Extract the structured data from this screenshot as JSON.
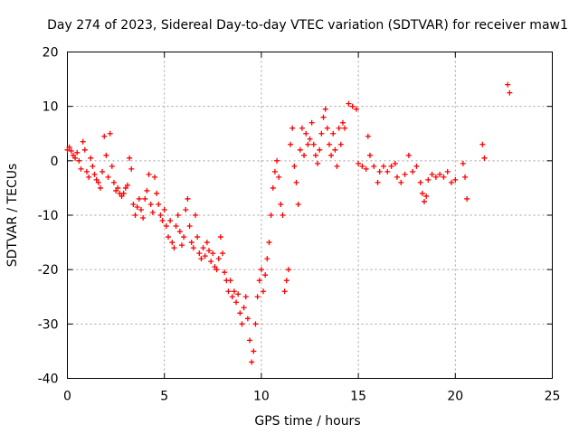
{
  "chart_data": {
    "type": "scatter",
    "title": "Day 274 of 2023, Sidereal Day-to-day VTEC variation (SDTVAR) for receiver maw1",
    "xlabel": "GPS time / hours",
    "ylabel": "SDTVAR / TECUs",
    "xlim": [
      0,
      25
    ],
    "ylim": [
      -40,
      20
    ],
    "xticks": [
      0,
      5,
      10,
      15,
      20,
      25
    ],
    "yticks": [
      -40,
      -30,
      -20,
      -10,
      0,
      10,
      20
    ],
    "xtick_labels": [
      "0",
      "5",
      "10",
      "15",
      "20",
      "25"
    ],
    "ytick_labels": [
      "-40",
      "-30",
      "-20",
      "-10",
      "0",
      "10",
      "20"
    ],
    "grid": true,
    "marker": "plus",
    "series": [
      {
        "name": "SDTVAR",
        "color": "#ff0000",
        "points": [
          [
            0.0,
            2.0
          ],
          [
            0.1,
            2.5
          ],
          [
            0.2,
            1.8
          ],
          [
            0.3,
            1.0
          ],
          [
            0.4,
            0.5
          ],
          [
            0.5,
            1.5
          ],
          [
            0.6,
            0.0
          ],
          [
            0.7,
            -1.5
          ],
          [
            0.8,
            3.5
          ],
          [
            0.9,
            2.0
          ],
          [
            1.0,
            -2.0
          ],
          [
            1.1,
            -3.0
          ],
          [
            1.2,
            0.5
          ],
          [
            1.3,
            -1.0
          ],
          [
            1.4,
            -2.5
          ],
          [
            1.5,
            -3.5
          ],
          [
            1.6,
            -4.0
          ],
          [
            1.7,
            -5.0
          ],
          [
            1.8,
            -2.0
          ],
          [
            1.9,
            4.5
          ],
          [
            2.0,
            1.0
          ],
          [
            2.1,
            -3.0
          ],
          [
            2.2,
            5.0
          ],
          [
            2.3,
            -1.0
          ],
          [
            2.4,
            -4.0
          ],
          [
            2.5,
            -5.5
          ],
          [
            2.6,
            -5.0
          ],
          [
            2.7,
            -6.0
          ],
          [
            2.8,
            -6.5
          ],
          [
            2.9,
            -6.0
          ],
          [
            3.0,
            -5.0
          ],
          [
            3.1,
            -4.5
          ],
          [
            3.2,
            0.5
          ],
          [
            3.3,
            -1.5
          ],
          [
            3.4,
            -8.0
          ],
          [
            3.5,
            -10.0
          ],
          [
            3.6,
            -8.5
          ],
          [
            3.7,
            -7.0
          ],
          [
            3.8,
            -9.0
          ],
          [
            3.9,
            -10.5
          ],
          [
            4.0,
            -7.0
          ],
          [
            4.1,
            -5.5
          ],
          [
            4.2,
            -2.5
          ],
          [
            4.3,
            -8.0
          ],
          [
            4.4,
            -9.5
          ],
          [
            4.5,
            -3.0
          ],
          [
            4.6,
            -6.0
          ],
          [
            4.7,
            -8.0
          ],
          [
            4.8,
            -10.0
          ],
          [
            4.9,
            -11.0
          ],
          [
            5.0,
            -9.0
          ],
          [
            5.1,
            -12.0
          ],
          [
            5.2,
            -14.0
          ],
          [
            5.3,
            -11.0
          ],
          [
            5.4,
            -15.0
          ],
          [
            5.5,
            -16.0
          ],
          [
            5.6,
            -12.0
          ],
          [
            5.7,
            -10.0
          ],
          [
            5.8,
            -13.0
          ],
          [
            5.9,
            -15.5
          ],
          [
            6.0,
            -14.0
          ],
          [
            6.1,
            -9.0
          ],
          [
            6.2,
            -7.0
          ],
          [
            6.3,
            -12.0
          ],
          [
            6.4,
            -15.0
          ],
          [
            6.5,
            -16.0
          ],
          [
            6.6,
            -10.0
          ],
          [
            6.7,
            -14.0
          ],
          [
            6.8,
            -17.0
          ],
          [
            6.9,
            -18.0
          ],
          [
            7.0,
            -16.0
          ],
          [
            7.1,
            -17.5
          ],
          [
            7.2,
            -15.0
          ],
          [
            7.3,
            -16.5
          ],
          [
            7.4,
            -18.5
          ],
          [
            7.5,
            -17.0
          ],
          [
            7.6,
            -19.5
          ],
          [
            7.7,
            -20.0
          ],
          [
            7.8,
            -18.0
          ],
          [
            7.9,
            -14.0
          ],
          [
            8.0,
            -17.0
          ],
          [
            8.1,
            -20.5
          ],
          [
            8.2,
            -22.0
          ],
          [
            8.3,
            -24.0
          ],
          [
            8.4,
            -22.0
          ],
          [
            8.5,
            -25.0
          ],
          [
            8.6,
            -24.0
          ],
          [
            8.7,
            -26.0
          ],
          [
            8.8,
            -24.5
          ],
          [
            8.9,
            -28.0
          ],
          [
            9.0,
            -30.0
          ],
          [
            9.1,
            -27.0
          ],
          [
            9.2,
            -25.0
          ],
          [
            9.3,
            -29.0
          ],
          [
            9.4,
            -33.0
          ],
          [
            9.5,
            -37.0
          ],
          [
            9.6,
            -35.0
          ],
          [
            9.7,
            -30.0
          ],
          [
            9.8,
            -25.0
          ],
          [
            9.9,
            -22.0
          ],
          [
            10.0,
            -20.0
          ],
          [
            10.1,
            -24.0
          ],
          [
            10.2,
            -21.0
          ],
          [
            10.3,
            -18.0
          ],
          [
            10.4,
            -15.0
          ],
          [
            10.5,
            -10.0
          ],
          [
            10.6,
            -5.0
          ],
          [
            10.7,
            -2.0
          ],
          [
            10.8,
            0.0
          ],
          [
            10.9,
            -3.0
          ],
          [
            11.0,
            -8.0
          ],
          [
            11.1,
            -10.0
          ],
          [
            11.2,
            -24.0
          ],
          [
            11.3,
            -22.0
          ],
          [
            11.4,
            -20.0
          ],
          [
            11.5,
            3.0
          ],
          [
            11.6,
            6.0
          ],
          [
            11.7,
            -1.0
          ],
          [
            11.8,
            -4.0
          ],
          [
            11.9,
            -8.0
          ],
          [
            12.0,
            2.0
          ],
          [
            12.1,
            6.0
          ],
          [
            12.2,
            1.0
          ],
          [
            12.3,
            5.0
          ],
          [
            12.4,
            3.0
          ],
          [
            12.5,
            4.0
          ],
          [
            12.6,
            7.0
          ],
          [
            12.7,
            3.0
          ],
          [
            12.8,
            1.0
          ],
          [
            12.9,
            -0.5
          ],
          [
            13.0,
            2.0
          ],
          [
            13.1,
            5.0
          ],
          [
            13.2,
            8.0
          ],
          [
            13.3,
            9.5
          ],
          [
            13.4,
            6.0
          ],
          [
            13.5,
            3.0
          ],
          [
            13.6,
            1.0
          ],
          [
            13.7,
            5.0
          ],
          [
            13.8,
            2.0
          ],
          [
            13.9,
            -1.0
          ],
          [
            14.0,
            6.0
          ],
          [
            14.1,
            3.0
          ],
          [
            14.2,
            7.0
          ],
          [
            14.3,
            6.0
          ],
          [
            14.5,
            10.5
          ],
          [
            14.7,
            10.0
          ],
          [
            14.9,
            9.5
          ],
          [
            15.0,
            -0.5
          ],
          [
            15.2,
            -1.0
          ],
          [
            15.4,
            -1.5
          ],
          [
            15.5,
            4.5
          ],
          [
            15.6,
            1.0
          ],
          [
            15.8,
            -1.0
          ],
          [
            16.0,
            -4.0
          ],
          [
            16.1,
            -2.0
          ],
          [
            16.3,
            -1.0
          ],
          [
            16.5,
            -2.0
          ],
          [
            16.7,
            -1.0
          ],
          [
            16.9,
            -0.5
          ],
          [
            17.0,
            -3.0
          ],
          [
            17.2,
            -4.0
          ],
          [
            17.4,
            -2.5
          ],
          [
            17.6,
            1.0
          ],
          [
            17.8,
            -2.0
          ],
          [
            18.0,
            -1.0
          ],
          [
            18.2,
            -4.0
          ],
          [
            18.3,
            -6.0
          ],
          [
            18.4,
            -7.5
          ],
          [
            18.5,
            -6.5
          ],
          [
            18.6,
            -3.5
          ],
          [
            18.8,
            -2.5
          ],
          [
            19.0,
            -3.0
          ],
          [
            19.2,
            -2.5
          ],
          [
            19.4,
            -3.0
          ],
          [
            19.6,
            -2.0
          ],
          [
            19.8,
            -4.0
          ],
          [
            20.0,
            -3.5
          ],
          [
            20.4,
            -0.5
          ],
          [
            20.5,
            -3.0
          ],
          [
            20.6,
            -7.0
          ],
          [
            21.4,
            3.0
          ],
          [
            21.5,
            0.5
          ],
          [
            22.7,
            14.0
          ],
          [
            22.8,
            12.5
          ]
        ]
      }
    ]
  }
}
